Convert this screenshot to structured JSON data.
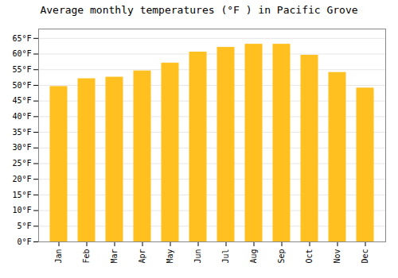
{
  "chart_data": {
    "type": "bar",
    "title": "Average monthly temperatures (°F ) in Pacific Grove",
    "categories": [
      "Jan",
      "Feb",
      "Mar",
      "Apr",
      "May",
      "Jun",
      "Jul",
      "Aug",
      "Sep",
      "Oct",
      "Nov",
      "Dec"
    ],
    "values": [
      49.5,
      52,
      52.5,
      54.5,
      57,
      60.5,
      62,
      63,
      63,
      59.5,
      54,
      49
    ],
    "color": "#FFC020",
    "ylim": [
      0,
      68
    ],
    "yticks": [
      {
        "value": 0,
        "label": "0°F"
      },
      {
        "value": 5,
        "label": "5°F"
      },
      {
        "value": 10,
        "label": "10°F"
      },
      {
        "value": 15,
        "label": "15°F"
      },
      {
        "value": 20,
        "label": "20°F"
      },
      {
        "value": 25,
        "label": "25°F"
      },
      {
        "value": 30,
        "label": "30°F"
      },
      {
        "value": 35,
        "label": "35°F"
      },
      {
        "value": 40,
        "label": "40°F"
      },
      {
        "value": 45,
        "label": "45°F"
      },
      {
        "value": 50,
        "label": "50°F"
      },
      {
        "value": 55,
        "label": "55°F"
      },
      {
        "value": 60,
        "label": "60°F"
      },
      {
        "value": 65,
        "label": "65°F"
      }
    ],
    "grid": true
  }
}
